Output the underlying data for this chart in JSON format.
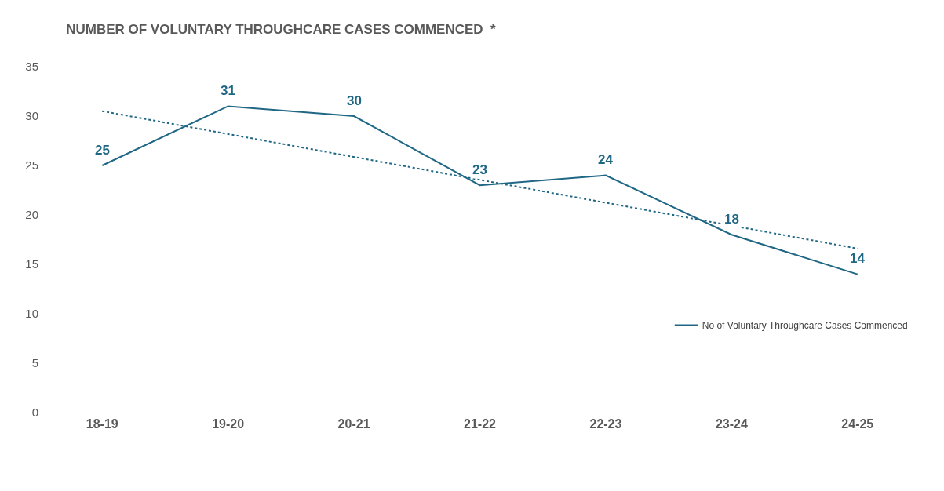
{
  "chart_data": {
    "type": "line",
    "title": "NUMBER OF VOLUNTARY THROUGHCARE CASES COMMENCED  *",
    "categories": [
      "18-19",
      "19-20",
      "20-21",
      "21-22",
      "22-23",
      "23-24",
      "24-25"
    ],
    "series": [
      {
        "name": "No of Voluntary Throughcare Cases Commenced",
        "color": "#1f6784",
        "values": [
          25,
          31,
          30,
          23,
          24,
          18,
          14
        ],
        "value_labels": [
          "25",
          "31",
          "30",
          "23",
          "24",
          "18",
          "14"
        ],
        "line_style": "solid"
      },
      {
        "type": "line",
        "color": "#1f6784",
        "x": [
          "18-19",
          "24-25"
        ],
        "values": [
          30.5,
          16.6
        ],
        "line_style": "dotted"
      }
    ],
    "ylim": [
      0,
      35
    ],
    "yticks": [
      0,
      5,
      10,
      15,
      20,
      25,
      30,
      35
    ],
    "grid": false,
    "legend": "bottom right",
    "marker": "none"
  }
}
